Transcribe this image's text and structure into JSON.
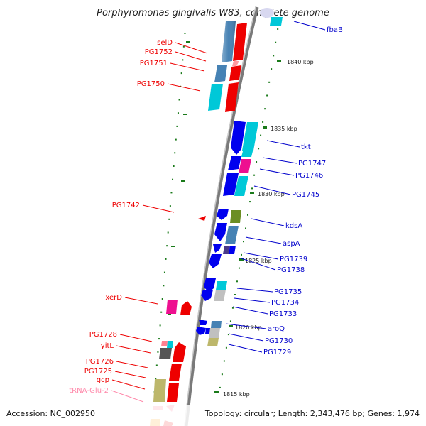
{
  "title": "Porphyromonas gingivalis W83, complete genome",
  "footer": {
    "accession": "Accession: NC_002950",
    "summary": "Topology: circular; Length: 2,343,476 bp; Genes: 1,974"
  },
  "colors": {
    "backbone": "#8c8c8c",
    "tick": "#1a7a1a",
    "left_label": "#cc0000",
    "right_label": "#0000cc",
    "rna_label": "#ff88aa",
    "red_gene": "#ee0000",
    "blue_gene": "#0000ee",
    "steel_gene": "#4682b4",
    "cyan_gene": "#00c8d8",
    "magenta_gene": "#ee1090",
    "olive_gene": "#6b8e23",
    "gray_gene": "#999999",
    "khaki_gene": "#bdb76b",
    "dark_gene": "#555555",
    "pink_gene": "#ff6080",
    "orange_gene": "#ff9900"
  },
  "ticks": [
    {
      "label": "1840 kbp"
    },
    {
      "label": "1835 kbp"
    },
    {
      "label": "1830 kbp"
    },
    {
      "label": "1825 kbp"
    },
    {
      "label": "1820 kbp"
    },
    {
      "label": "1815 kbp"
    }
  ],
  "left_labels": [
    {
      "text": "selD",
      "color": "red_gene"
    },
    {
      "text": "PG1752",
      "color": "red_gene"
    },
    {
      "text": "PG1751",
      "color": "red_gene"
    },
    {
      "text": "PG1750",
      "color": "red_gene"
    },
    {
      "text": "PG1742",
      "color": "red_gene"
    },
    {
      "text": "xerD",
      "color": "red_gene"
    },
    {
      "text": "PG1728",
      "color": "red_gene"
    },
    {
      "text": "yitL",
      "color": "red_gene"
    },
    {
      "text": "PG1726",
      "color": "red_gene"
    },
    {
      "text": "PG1725",
      "color": "red_gene"
    },
    {
      "text": "gcp",
      "color": "red_gene"
    },
    {
      "text": "tRNA-Glu-2",
      "color": "rna_label"
    }
  ],
  "right_labels": [
    {
      "text": "fbaB"
    },
    {
      "text": "tkt"
    },
    {
      "text": "PG1747"
    },
    {
      "text": "PG1746"
    },
    {
      "text": "PG1745"
    },
    {
      "text": "kdsA"
    },
    {
      "text": "aspA"
    },
    {
      "text": "PG1739"
    },
    {
      "text": "PG1738"
    },
    {
      "text": "PG1735"
    },
    {
      "text": "PG1734"
    },
    {
      "text": "PG1733"
    },
    {
      "text": "aroQ"
    },
    {
      "text": "PG1730"
    },
    {
      "text": "PG1729"
    }
  ]
}
